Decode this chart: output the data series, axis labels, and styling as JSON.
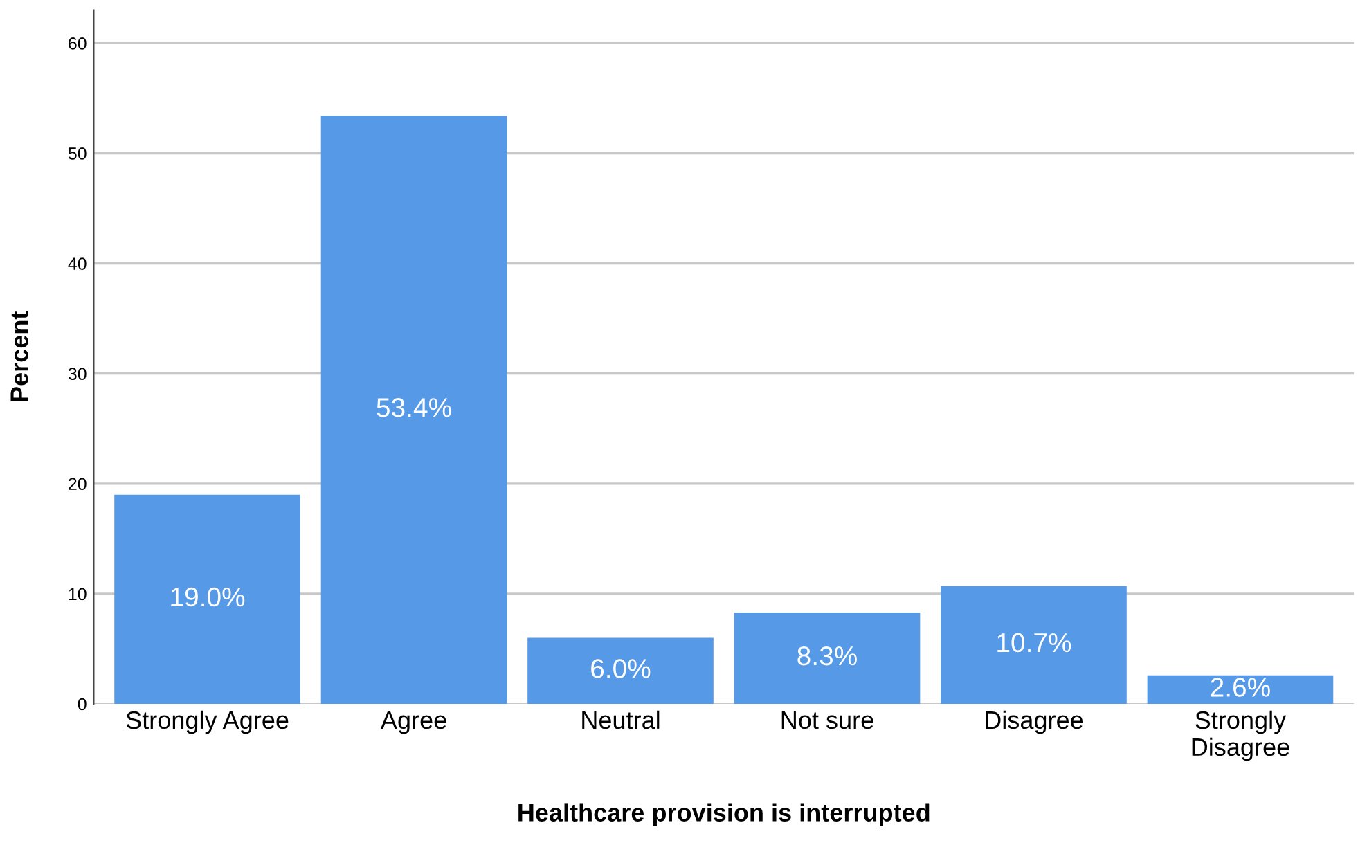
{
  "chart_data": {
    "type": "bar",
    "xlabel": "Healthcare provision is interrupted",
    "ylabel": "Percent",
    "categories": [
      "Strongly Agree",
      "Agree",
      "Neutral",
      "Not sure",
      "Disagree",
      "Strongly\nDisagree"
    ],
    "values": [
      19.0,
      53.4,
      6.0,
      8.3,
      10.7,
      2.6
    ],
    "value_labels": [
      "19.0%",
      "53.4%",
      "6.0%",
      "8.3%",
      "10.7%",
      "2.6%"
    ],
    "color": "#5699e6",
    "ylim": [
      0,
      63
    ],
    "yticks": [
      0,
      10,
      20,
      30,
      40,
      50,
      60
    ],
    "grid": "y"
  }
}
